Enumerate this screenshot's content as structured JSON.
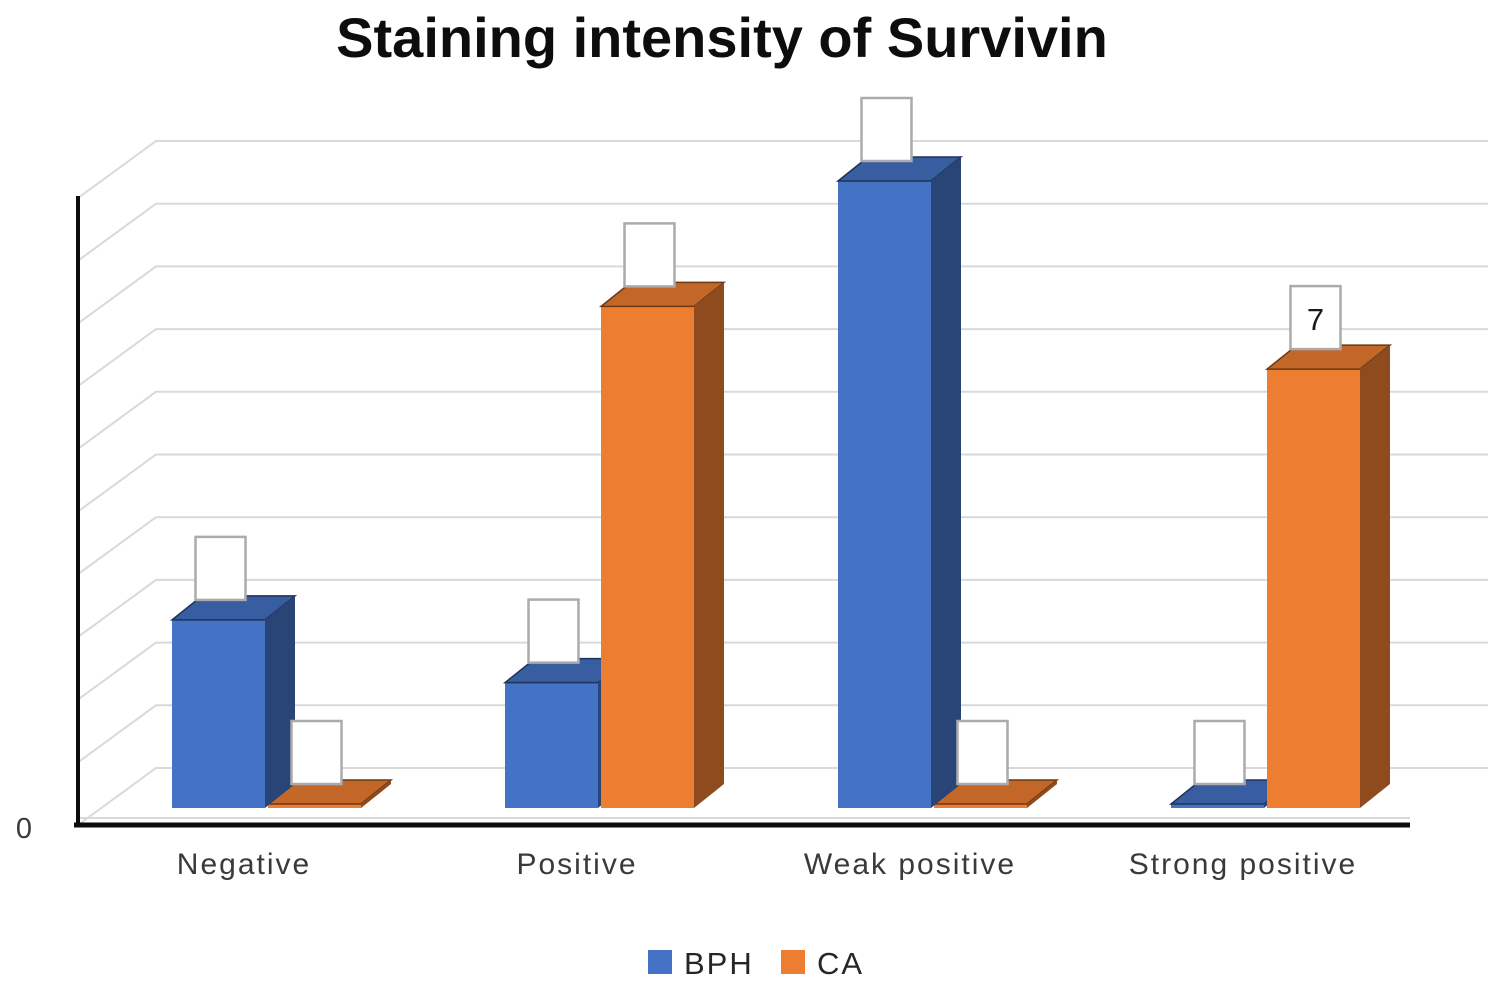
{
  "title": "Staining intensity of Survivin",
  "y_axis": {
    "visible_tick": "0"
  },
  "legend": {
    "items": [
      {
        "label": "BPH",
        "color": "#4472C4"
      },
      {
        "label": "CA",
        "color": "#ED7D31"
      }
    ]
  },
  "chart_data": {
    "type": "bar",
    "projection": "3d-clustered-column",
    "title": "Staining intensity of Survivin",
    "categories": [
      "Negative",
      "Positive",
      "Weak positive",
      "Strong positive"
    ],
    "series": [
      {
        "name": "BPH",
        "color": "#4472C4",
        "values": [
          3,
          2,
          10,
          0
        ],
        "visible_data_labels": [
          "",
          "",
          "",
          ""
        ]
      },
      {
        "name": "CA",
        "color": "#ED7D31",
        "values": [
          0,
          8,
          0,
          7
        ],
        "visible_data_labels": [
          "",
          "",
          "",
          "7"
        ]
      }
    ],
    "ylim": [
      0,
      10
    ],
    "gridline_step": 1,
    "visible_y_tick_labels": [
      "0"
    ],
    "grid": true,
    "gridline_color": "#D9D9D9",
    "data_label_boxes": "white boxes with gray border above each bar",
    "legend_position": "bottom"
  }
}
